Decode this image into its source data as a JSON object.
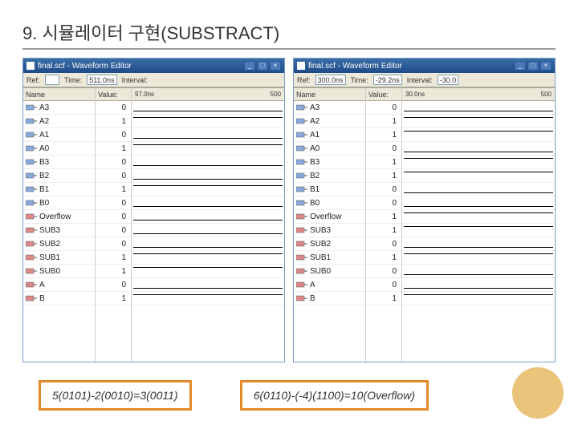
{
  "slide_title": "9. 시뮬레이터 구현(SUBSTRACT)",
  "caption_left": "5(0101)-2(0010)=3(0011)",
  "caption_right": "6(0110)-(-4)(1100)=10(Overflow)",
  "colors": {
    "titlebar_top": "#3a6ea5",
    "titlebar_bottom": "#1e4a8a",
    "panel_bg": "#ece9d8",
    "border": "#aca899",
    "caption_border": "#e28a2b",
    "circle": "#e9c47a"
  },
  "left_window": {
    "title": "final.scf - Waveform Editor",
    "toolbar": {
      "ref_label": "Ref:",
      "time_label": "Time:",
      "interval_label": "Interval:",
      "time_value": "511.0ns"
    },
    "col_name": "Name",
    "col_value": "Value:",
    "wave_marker_left": "97.0ns",
    "wave_marker_right": "500",
    "signals": [
      {
        "name": "A3",
        "value": "0",
        "state": "low"
      },
      {
        "name": "A2",
        "value": "1",
        "state": "high"
      },
      {
        "name": "A1",
        "value": "0",
        "state": "low"
      },
      {
        "name": "A0",
        "value": "1",
        "state": "high"
      },
      {
        "name": "B3",
        "value": "0",
        "state": "low"
      },
      {
        "name": "B2",
        "value": "0",
        "state": "low"
      },
      {
        "name": "B1",
        "value": "1",
        "state": "high"
      },
      {
        "name": "B0",
        "value": "0",
        "state": "low"
      },
      {
        "name": "Overflow",
        "value": "0",
        "state": "low"
      },
      {
        "name": "SUB3",
        "value": "0",
        "state": "low"
      },
      {
        "name": "SUB2",
        "value": "0",
        "state": "low"
      },
      {
        "name": "SUB1",
        "value": "1",
        "state": "high"
      },
      {
        "name": "SUB0",
        "value": "1",
        "state": "high"
      },
      {
        "name": "A",
        "value": "0",
        "state": "low"
      },
      {
        "name": "B",
        "value": "1",
        "state": "high"
      }
    ]
  },
  "right_window": {
    "title": "final.scf - Waveform Editor",
    "toolbar": {
      "ref_label": "Ref:",
      "time_label": "Time:",
      "interval_label": "Interval:",
      "ref_value": "300.0ns",
      "time_value": "-29.2ns",
      "interval_value": "-30.0"
    },
    "col_name": "Name",
    "col_value": "Value:",
    "wave_marker_left": "30.0ns",
    "wave_marker_right": "500",
    "signals": [
      {
        "name": "A3",
        "value": "0",
        "state": "low"
      },
      {
        "name": "A2",
        "value": "1",
        "state": "high"
      },
      {
        "name": "A1",
        "value": "1",
        "state": "high"
      },
      {
        "name": "A0",
        "value": "0",
        "state": "low"
      },
      {
        "name": "B3",
        "value": "1",
        "state": "high"
      },
      {
        "name": "B2",
        "value": "1",
        "state": "high"
      },
      {
        "name": "B1",
        "value": "0",
        "state": "low"
      },
      {
        "name": "B0",
        "value": "0",
        "state": "low"
      },
      {
        "name": "Overflow",
        "value": "1",
        "state": "high"
      },
      {
        "name": "SUB3",
        "value": "1",
        "state": "high"
      },
      {
        "name": "SUB2",
        "value": "0",
        "state": "low"
      },
      {
        "name": "SUB1",
        "value": "1",
        "state": "high"
      },
      {
        "name": "SUB0",
        "value": "0",
        "state": "low"
      },
      {
        "name": "A",
        "value": "0",
        "state": "low"
      },
      {
        "name": "B",
        "value": "1",
        "state": "high"
      }
    ]
  }
}
